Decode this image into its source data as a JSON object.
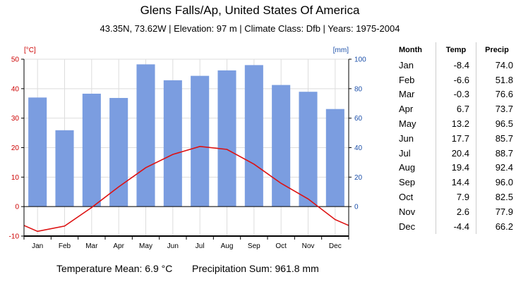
{
  "header": {
    "title": "Glens Falls/Ap, United States Of America",
    "subtitle": "43.35N, 73.62W | Elevation: 97 m | Climate Class: Dfb | Years: 1975-2004"
  },
  "footer": {
    "temp_mean": "Temperature Mean: 6.9 °C",
    "precip_sum": "Precipitation Sum: 961.8 mm"
  },
  "table": {
    "headers": [
      "Month",
      "Temp",
      "Precip"
    ],
    "rows": [
      [
        "Jan",
        "-8.4",
        "74.0"
      ],
      [
        "Feb",
        "-6.6",
        "51.8"
      ],
      [
        "Mar",
        "-0.3",
        "76.6"
      ],
      [
        "Apr",
        "6.7",
        "73.7"
      ],
      [
        "May",
        "13.2",
        "96.5"
      ],
      [
        "Jun",
        "17.7",
        "85.7"
      ],
      [
        "Jul",
        "20.4",
        "88.7"
      ],
      [
        "Aug",
        "19.4",
        "92.4"
      ],
      [
        "Sep",
        "14.4",
        "96.0"
      ],
      [
        "Oct",
        "7.9",
        "82.5"
      ],
      [
        "Nov",
        "2.6",
        "77.9"
      ],
      [
        "Dec",
        "-4.4",
        "66.2"
      ]
    ]
  },
  "chart_data": {
    "type": "bar+line",
    "categories": [
      "Jan",
      "Feb",
      "Mar",
      "Apr",
      "May",
      "Jun",
      "Jul",
      "Aug",
      "Sep",
      "Oct",
      "Nov",
      "Dec"
    ],
    "series": [
      {
        "name": "Precip",
        "type": "bar",
        "axis": "right",
        "values": [
          74.0,
          51.8,
          76.6,
          73.7,
          96.5,
          85.7,
          88.7,
          92.4,
          96.0,
          82.5,
          77.9,
          66.2
        ]
      },
      {
        "name": "Temp",
        "type": "line",
        "axis": "left",
        "values": [
          -8.4,
          -6.6,
          -0.3,
          6.7,
          13.2,
          17.7,
          20.4,
          19.4,
          14.4,
          7.9,
          2.6,
          -4.4
        ]
      }
    ],
    "y_left": {
      "label": "[°C]",
      "range": [
        -10,
        50
      ],
      "ticks": [
        -10,
        0,
        10,
        20,
        30,
        40,
        50
      ]
    },
    "y_right": {
      "label": "[mm]",
      "range": [
        -20,
        100
      ],
      "ticks": [
        0,
        20,
        40,
        60,
        80,
        100
      ]
    },
    "grid": true,
    "colors": {
      "bar": "#7b9de0",
      "line": "#dd1111",
      "left_axis": "#cc0000",
      "right_axis": "#1a4ea8",
      "grid": "#dddddd"
    }
  }
}
